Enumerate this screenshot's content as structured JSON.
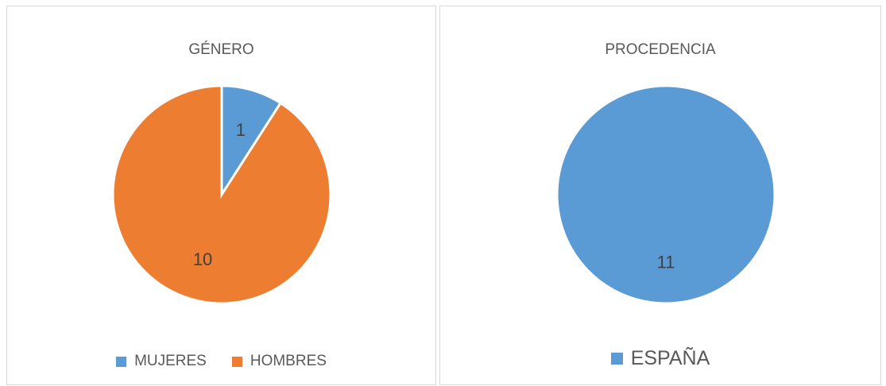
{
  "chart_data": [
    {
      "type": "pie",
      "title": "GÉNERO",
      "slices": [
        {
          "label": "MUJERES",
          "value": 1,
          "color": "#5b9bd5"
        },
        {
          "label": "HOMBRES",
          "value": 10,
          "color": "#ed7d31"
        }
      ],
      "legend": "bottom"
    },
    {
      "type": "pie",
      "title": "PROCEDENCIA",
      "slices": [
        {
          "label": "ESPAÑA",
          "value": 11,
          "color": "#5b9bd5"
        }
      ],
      "legend": "bottom"
    }
  ]
}
